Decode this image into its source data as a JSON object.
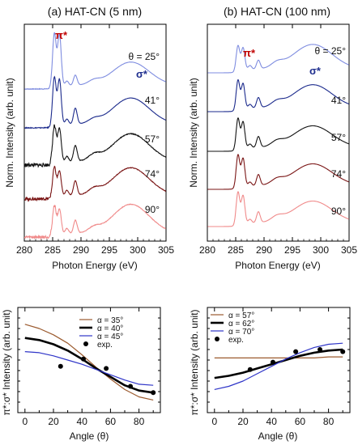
{
  "chart_data": [
    {
      "type": "line",
      "panel": "top-left",
      "title": "(a) HAT-CN (5 nm)",
      "xlabel": "Photon Energy (eV)",
      "ylabel": "Norm. Intensity (arb. unit)",
      "xlim": [
        280,
        305
      ],
      "x_ticks": [
        "280",
        "285",
        "290",
        "295",
        "300",
        "305"
      ],
      "theta_header": "θ = 25°",
      "peak_labels": {
        "pi": "π*",
        "sigma": "σ*"
      },
      "spectra": [
        {
          "label": "θ = 25°",
          "color": "#7f8de0",
          "peaks": [
            {
              "x": 285.3,
              "h": 0.75
            },
            {
              "x": 286.2,
              "h": 0.72
            },
            {
              "x": 287.5,
              "h": 0.07
            },
            {
              "x": 289.0,
              "h": 0.14
            },
            {
              "x": 292.3,
              "h": 0.05
            },
            {
              "x": 298.8,
              "h": 0.32
            }
          ],
          "sigma_width": 3.2,
          "noise": 0.005
        },
        {
          "label": "41°",
          "color": "#1b2a8c",
          "peaks": [
            {
              "x": 285.3,
              "h": 0.68
            },
            {
              "x": 286.2,
              "h": 0.64
            },
            {
              "x": 287.5,
              "h": 0.08
            },
            {
              "x": 289.0,
              "h": 0.22
            },
            {
              "x": 292.3,
              "h": 0.05
            },
            {
              "x": 298.8,
              "h": 0.36
            }
          ],
          "sigma_width": 3.2,
          "noise": 0.006
        },
        {
          "label": "57°",
          "color": "#111111",
          "peaks": [
            {
              "x": 285.3,
              "h": 0.52
            },
            {
              "x": 286.2,
              "h": 0.48
            },
            {
              "x": 287.5,
              "h": 0.08
            },
            {
              "x": 289.0,
              "h": 0.22
            },
            {
              "x": 292.3,
              "h": 0.07
            },
            {
              "x": 298.8,
              "h": 0.38
            }
          ],
          "sigma_width": 3.2,
          "noise": 0.025
        },
        {
          "label": "74°",
          "color": "#7a1515",
          "peaks": [
            {
              "x": 285.3,
              "h": 0.42
            },
            {
              "x": 286.2,
              "h": 0.36
            },
            {
              "x": 287.5,
              "h": 0.08
            },
            {
              "x": 289.0,
              "h": 0.2
            },
            {
              "x": 292.3,
              "h": 0.07
            },
            {
              "x": 298.8,
              "h": 0.38
            }
          ],
          "sigma_width": 3.2,
          "noise": 0.02
        },
        {
          "label": "90°",
          "color": "#f08a8a",
          "peaks": [
            {
              "x": 285.3,
              "h": 0.42
            },
            {
              "x": 286.2,
              "h": 0.36
            },
            {
              "x": 287.5,
              "h": 0.08
            },
            {
              "x": 289.0,
              "h": 0.18
            },
            {
              "x": 292.3,
              "h": 0.06
            },
            {
              "x": 298.8,
              "h": 0.4
            }
          ],
          "sigma_width": 3.2,
          "noise": 0.02
        }
      ]
    },
    {
      "type": "line",
      "panel": "top-right",
      "title": "(b) HAT-CN (100 nm)",
      "xlabel": "Photon Energy (eV)",
      "ylabel": "Norm. Intensity (arb. unit)",
      "xlim": [
        280,
        305
      ],
      "x_ticks": [
        "280",
        "285",
        "290",
        "295",
        "300",
        "305"
      ],
      "theta_header": "θ = 25°",
      "peak_labels": {
        "pi": "π*",
        "sigma": "σ*"
      },
      "spectra": [
        {
          "label": "θ = 25°",
          "color": "#7f8de0",
          "peaks": [
            {
              "x": 285.4,
              "h": 0.36
            },
            {
              "x": 286.3,
              "h": 0.32
            },
            {
              "x": 287.5,
              "h": 0.06
            },
            {
              "x": 289.0,
              "h": 0.12
            },
            {
              "x": 292.3,
              "h": 0.06
            },
            {
              "x": 298.6,
              "h": 0.34
            }
          ],
          "sigma_width": 3.4,
          "noise": 0.0
        },
        {
          "label": "41°",
          "color": "#1b2a8c",
          "peaks": [
            {
              "x": 285.4,
              "h": 0.42
            },
            {
              "x": 286.3,
              "h": 0.36
            },
            {
              "x": 287.5,
              "h": 0.06
            },
            {
              "x": 289.0,
              "h": 0.14
            },
            {
              "x": 292.3,
              "h": 0.06
            },
            {
              "x": 298.6,
              "h": 0.32
            }
          ],
          "sigma_width": 3.4,
          "noise": 0.0
        },
        {
          "label": "57°",
          "color": "#111111",
          "peaks": [
            {
              "x": 285.4,
              "h": 0.44
            },
            {
              "x": 286.3,
              "h": 0.38
            },
            {
              "x": 287.5,
              "h": 0.06
            },
            {
              "x": 289.0,
              "h": 0.15
            },
            {
              "x": 292.3,
              "h": 0.06
            },
            {
              "x": 298.6,
              "h": 0.3
            }
          ],
          "sigma_width": 3.4,
          "noise": 0.0
        },
        {
          "label": "74°",
          "color": "#7a1515",
          "peaks": [
            {
              "x": 285.4,
              "h": 0.46
            },
            {
              "x": 286.3,
              "h": 0.4
            },
            {
              "x": 287.5,
              "h": 0.06
            },
            {
              "x": 289.0,
              "h": 0.15
            },
            {
              "x": 292.3,
              "h": 0.06
            },
            {
              "x": 298.6,
              "h": 0.3
            }
          ],
          "sigma_width": 3.4,
          "noise": 0.0
        },
        {
          "label": "90°",
          "color": "#f08a8a",
          "peaks": [
            {
              "x": 285.4,
              "h": 0.46
            },
            {
              "x": 286.3,
              "h": 0.4
            },
            {
              "x": 287.5,
              "h": 0.06
            },
            {
              "x": 289.0,
              "h": 0.15
            },
            {
              "x": 292.3,
              "h": 0.06
            },
            {
              "x": 298.6,
              "h": 0.3
            }
          ],
          "sigma_width": 3.4,
          "noise": 0.0
        }
      ]
    },
    {
      "type": "line",
      "panel": "bottom-left",
      "xlabel": "Angle (θ)",
      "ylabel": "π*:σ* Intensity (arb. unit)",
      "xlim": [
        -5,
        95
      ],
      "ylim": [
        0,
        1
      ],
      "x_ticks": [
        "0",
        "20",
        "40",
        "60",
        "80"
      ],
      "legend_position": "top-right",
      "series": [
        {
          "name": "α = 35°",
          "color": "#9b5a2e",
          "width": 1.2,
          "points": [
            [
              0,
              0.84
            ],
            [
              10,
              0.8
            ],
            [
              20,
              0.74
            ],
            [
              30,
              0.66
            ],
            [
              40,
              0.55
            ],
            [
              50,
              0.43
            ],
            [
              60,
              0.32
            ],
            [
              70,
              0.22
            ],
            [
              80,
              0.15
            ],
            [
              90,
              0.12
            ]
          ]
        },
        {
          "name": "α = 40°",
          "color": "#000000",
          "width": 2.6,
          "points": [
            [
              0,
              0.71
            ],
            [
              10,
              0.69
            ],
            [
              20,
              0.65
            ],
            [
              30,
              0.59
            ],
            [
              40,
              0.51
            ],
            [
              50,
              0.42
            ],
            [
              60,
              0.34
            ],
            [
              70,
              0.26
            ],
            [
              80,
              0.21
            ],
            [
              90,
              0.19
            ]
          ]
        },
        {
          "name": "α = 45°",
          "color": "#2f35c8",
          "width": 1.2,
          "points": [
            [
              0,
              0.58
            ],
            [
              10,
              0.57
            ],
            [
              20,
              0.54
            ],
            [
              30,
              0.5
            ],
            [
              40,
              0.46
            ],
            [
              50,
              0.41
            ],
            [
              60,
              0.36
            ],
            [
              70,
              0.31
            ],
            [
              80,
              0.27
            ],
            [
              90,
              0.26
            ]
          ]
        }
      ],
      "scatter": {
        "name": "exp.",
        "points": [
          [
            25,
            0.44
          ],
          [
            41,
            0.51
          ],
          [
            57,
            0.42
          ],
          [
            74,
            0.25
          ],
          [
            90,
            0.19
          ]
        ]
      }
    },
    {
      "type": "line",
      "panel": "bottom-right",
      "xlabel": "Angle (θ)",
      "ylabel": "π*:σ* Intensity (arb. unit)",
      "xlim": [
        -5,
        95
      ],
      "ylim": [
        0,
        1
      ],
      "x_ticks": [
        "0",
        "20",
        "40",
        "60",
        "80"
      ],
      "legend_position": "top-left",
      "series": [
        {
          "name": "α = 57°",
          "color": "#9b5a2e",
          "width": 1.2,
          "points": [
            [
              0,
              0.52
            ],
            [
              10,
              0.52
            ],
            [
              20,
              0.52
            ],
            [
              30,
              0.52
            ],
            [
              40,
              0.52
            ],
            [
              50,
              0.52
            ],
            [
              60,
              0.52
            ],
            [
              70,
              0.52
            ],
            [
              80,
              0.53
            ],
            [
              90,
              0.53
            ]
          ]
        },
        {
          "name": "α = 62°",
          "color": "#000000",
          "width": 2.6,
          "points": [
            [
              0,
              0.33
            ],
            [
              10,
              0.35
            ],
            [
              20,
              0.38
            ],
            [
              30,
              0.42
            ],
            [
              40,
              0.46
            ],
            [
              50,
              0.5
            ],
            [
              60,
              0.54
            ],
            [
              70,
              0.57
            ],
            [
              80,
              0.59
            ],
            [
              90,
              0.6
            ]
          ]
        },
        {
          "name": "α = 70°",
          "color": "#2f35c8",
          "width": 1.2,
          "points": [
            [
              0,
              0.22
            ],
            [
              10,
              0.25
            ],
            [
              20,
              0.3
            ],
            [
              30,
              0.37
            ],
            [
              40,
              0.44
            ],
            [
              50,
              0.51
            ],
            [
              60,
              0.57
            ],
            [
              70,
              0.62
            ],
            [
              80,
              0.65
            ],
            [
              90,
              0.66
            ]
          ]
        }
      ],
      "scatter": {
        "name": "exp.",
        "points": [
          [
            25,
            0.41
          ],
          [
            41,
            0.48
          ],
          [
            57,
            0.58
          ],
          [
            74,
            0.6
          ],
          [
            90,
            0.58
          ]
        ]
      }
    }
  ]
}
